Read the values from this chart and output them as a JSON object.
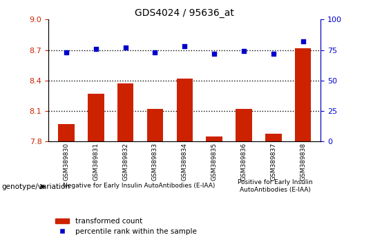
{
  "title": "GDS4024 / 95636_at",
  "samples": [
    "GSM389830",
    "GSM389831",
    "GSM389832",
    "GSM389833",
    "GSM389834",
    "GSM389835",
    "GSM389836",
    "GSM389837",
    "GSM389838"
  ],
  "transformed_count": [
    7.97,
    8.27,
    8.37,
    8.12,
    8.42,
    7.85,
    8.12,
    7.88,
    8.72
  ],
  "percentile_rank": [
    73,
    76,
    77,
    73,
    78,
    72,
    74,
    72,
    82
  ],
  "ylim_left": [
    7.8,
    9.0
  ],
  "ylim_right": [
    0,
    100
  ],
  "yticks_left": [
    7.8,
    8.1,
    8.4,
    8.7,
    9.0
  ],
  "yticks_right": [
    0,
    25,
    50,
    75,
    100
  ],
  "group1_label": "Negative for Early Insulin AutoAntibodies (E-IAA)",
  "group1_count": 6,
  "group2_label": "Positive for Early Insulin\nAutoAntibodies (E-IAA)",
  "group2_count": 3,
  "genotype_label": "genotype/variation",
  "legend_bar_label": "transformed count",
  "legend_dot_label": "percentile rank within the sample",
  "bar_color": "#cc2200",
  "dot_color": "#0000cc",
  "group1_bg": "#aaddaa",
  "group2_bg": "#44cc44",
  "tick_area_bg": "#cccccc",
  "left_axis_color": "#cc2200",
  "right_axis_color": "#0000cc"
}
